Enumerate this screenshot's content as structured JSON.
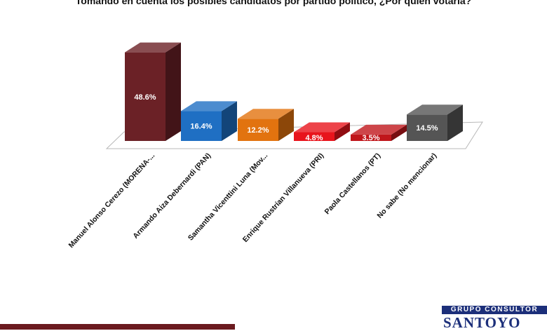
{
  "chart_data": {
    "type": "bar",
    "title": "Tomando en cuenta los posibles candidatos por partido político, ¿Por quién votaría?",
    "categories": [
      "Manuel Alonso Cerezo  (MORENA-...",
      "Armando Aiza Debernardi (PAN)",
      "Samantha Vicenttini Luna (Mov...",
      "Enrique Rustrían Villanueva (PRI)",
      "Paola Castellanos (PT)",
      "No sabe (No mencionar)"
    ],
    "values": [
      48.6,
      16.4,
      12.2,
      4.8,
      3.5,
      14.5
    ],
    "value_labels": [
      "48.6%",
      "16.4%",
      "12.2%",
      "4.8%",
      "3.5%",
      "14.5%"
    ],
    "colors": [
      "#6b2126",
      "#1f6fc3",
      "#e2730f",
      "#e8141c",
      "#c0161b",
      "#555555"
    ],
    "ylim": [
      0,
      50
    ],
    "grid": false,
    "legend": "none"
  },
  "logo": {
    "top_text": "GRUPO CONSULTOR",
    "bottom_text": "SANTOYO"
  }
}
